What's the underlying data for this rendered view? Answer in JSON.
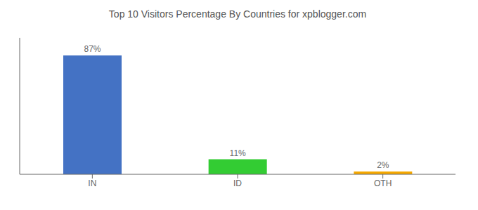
{
  "chart_data": {
    "type": "bar",
    "title": "Top 10 Visitors Percentage By Countries for xpblogger.com",
    "categories": [
      "IN",
      "ID",
      "OTH"
    ],
    "values": [
      87,
      11,
      2
    ],
    "value_labels": [
      "87%",
      "11%",
      "2%"
    ],
    "colors": [
      "#4472c4",
      "#33cc33",
      "#f5a800"
    ],
    "ylim": [
      0,
      100
    ],
    "data_labels": true,
    "tick_labels": "x",
    "grid": false
  }
}
